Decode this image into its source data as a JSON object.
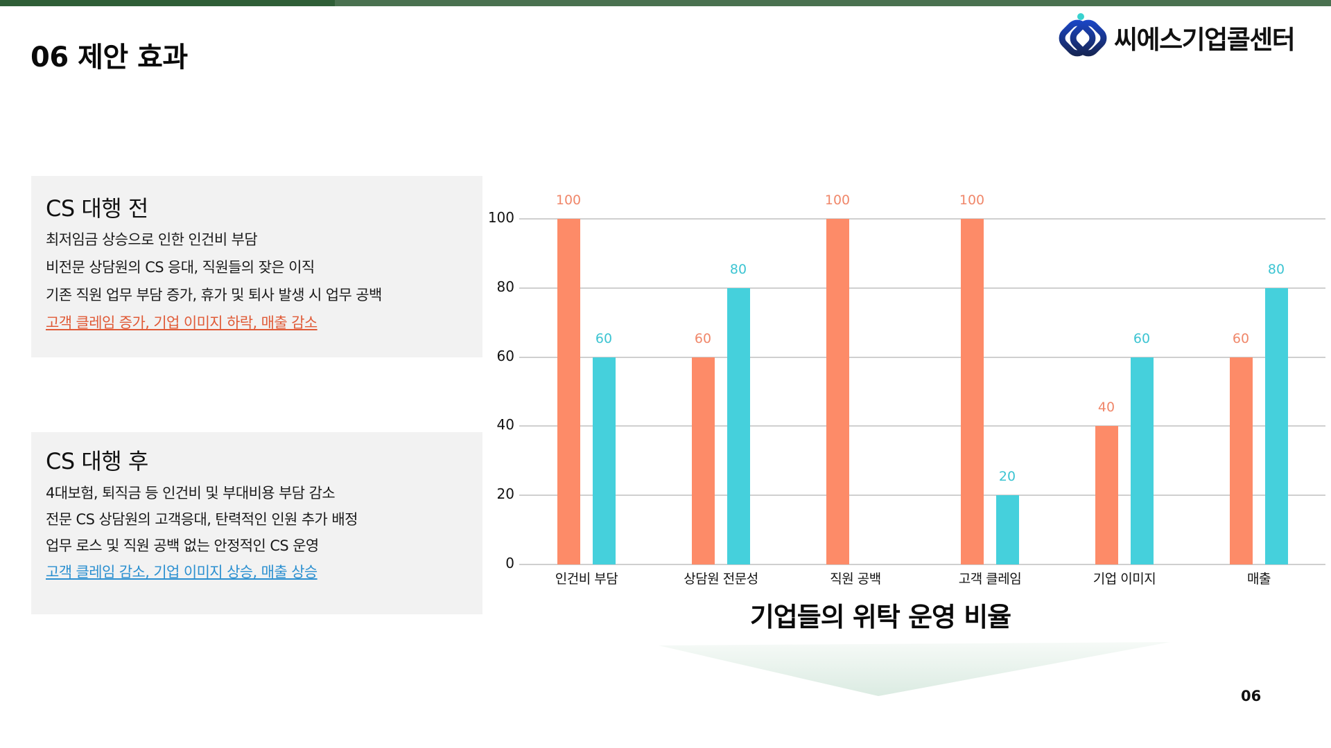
{
  "header": {
    "page_title": "06 제안 효과",
    "logo_text": "씨에스기업콜센터",
    "topbar_colors": [
      "#2f5e37",
      "#4a7150"
    ]
  },
  "before": {
    "title": "CS 대행 전",
    "items": [
      "최저임금 상승으로 인한 인건비 부담",
      "비전문 상담원의 CS 응대, 직원들의 잦은 이직",
      "기존 직원 업무 부담 증가, 휴가 및 퇴사 발생 시 업무 공백",
      "고객 클레임 증가, 기업 이미지 하락, 매출 감소"
    ],
    "highlight_color": "#e05a37"
  },
  "after": {
    "title": "CS 대행 후",
    "items": [
      "4대보험, 퇴직금 등 인건비 및 부대비용 부담 감소",
      "전문 CS 상담원의 고객응대, 탄력적인 인원 추가 배정",
      "업무 로스 및 직원 공백 없는 안정적인 CS 운영",
      "고객 클레임 감소, 기업 이미지 상승, 매출 상승"
    ],
    "highlight_color": "#2a8fd0"
  },
  "chart_data": {
    "type": "bar",
    "title": "기업들의 위탁 운영 비율",
    "xlabel": "",
    "ylabel": "",
    "categories": [
      "인건비 부담",
      "상담원 전문성",
      "직원 공백",
      "고객 클레임",
      "기업 이미지",
      "매출"
    ],
    "series": [
      {
        "name": "CS 대행 전",
        "color": "#fd8b68",
        "values": [
          100,
          60,
          100,
          100,
          40,
          60
        ]
      },
      {
        "name": "CS 대행 후",
        "color": "#45d0dc",
        "values": [
          60,
          80,
          null,
          20,
          60,
          80
        ]
      }
    ],
    "yticks": [
      0,
      20,
      40,
      60,
      80,
      100
    ],
    "ylim": [
      0,
      100
    ],
    "grid": true,
    "legend": "none",
    "data_labels": true
  },
  "footer": {
    "page_number": "06"
  }
}
